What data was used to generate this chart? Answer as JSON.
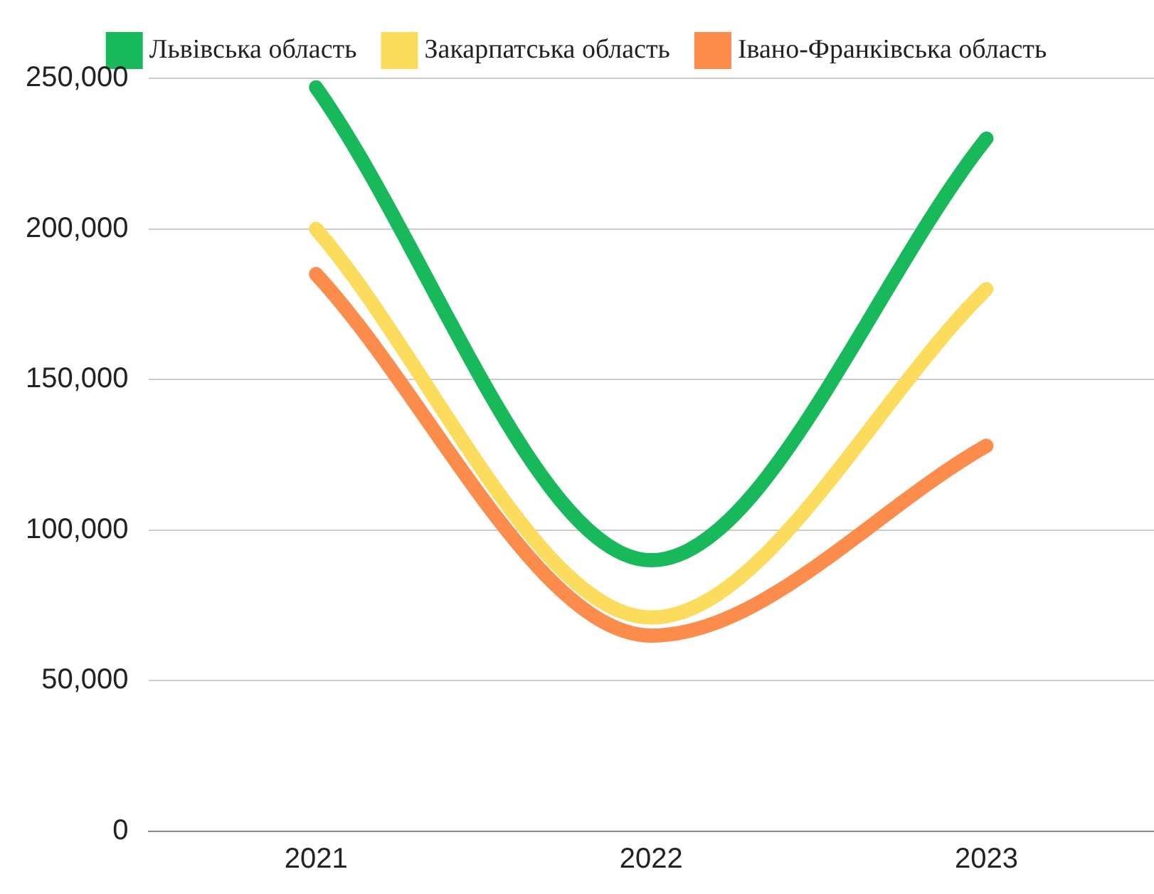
{
  "chart_data": {
    "type": "line",
    "categories": [
      "2021",
      "2022",
      "2023"
    ],
    "series": [
      {
        "name": "Львівська область",
        "color": "#17b95b",
        "values": [
          247000,
          90000,
          230000
        ]
      },
      {
        "name": "Закарпатська область",
        "color": "#fcdc5c",
        "values": [
          200000,
          71000,
          180000
        ]
      },
      {
        "name": "Івано-Франківська область",
        "color": "#fb8c4c",
        "values": [
          185000,
          65000,
          128000
        ]
      }
    ],
    "ylim": [
      0,
      250000
    ],
    "yticks": [
      {
        "value": 0,
        "label": "0"
      },
      {
        "value": 50000,
        "label": "50,000"
      },
      {
        "value": 100000,
        "label": "100,000"
      },
      {
        "value": 150000,
        "label": "150,000"
      },
      {
        "value": 200000,
        "label": "200,000"
      },
      {
        "value": 250000,
        "label": "250,000"
      }
    ],
    "grid": "y",
    "legend": "top",
    "marker": "none",
    "line_style": "solid"
  }
}
